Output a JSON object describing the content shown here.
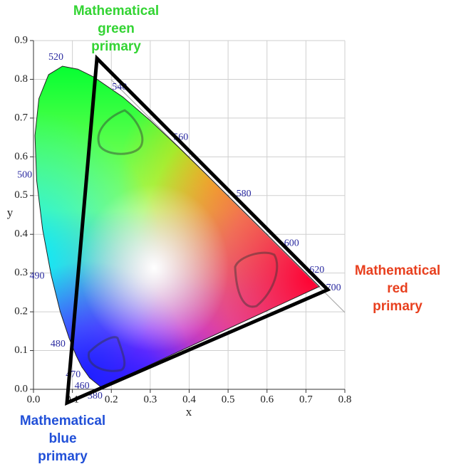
{
  "chart_data": {
    "type": "chromaticity",
    "xlabel": "x",
    "ylabel": "y",
    "xlim": [
      0,
      0.8
    ],
    "ylim": [
      0,
      0.9
    ],
    "xticks": [
      {
        "value": 0,
        "label": "0.0"
      },
      {
        "value": 0.1,
        "label": "0.1"
      },
      {
        "value": 0.2,
        "label": "0.2"
      },
      {
        "value": 0.3,
        "label": "0.3"
      },
      {
        "value": 0.4,
        "label": "0.4"
      },
      {
        "value": 0.5,
        "label": "0.5"
      },
      {
        "value": 0.6,
        "label": "0.6"
      },
      {
        "value": 0.7,
        "label": "0.7"
      },
      {
        "value": 0.8,
        "label": "0.8"
      }
    ],
    "yticks": [
      {
        "value": 0,
        "label": "0.0"
      },
      0.1,
      0.2,
      0.3,
      0.4,
      0.5,
      0.6,
      0.7,
      0.8,
      0.9
    ],
    "grid": true,
    "locus": {
      "x": [
        0.1741,
        0.144,
        0.1241,
        0.1096,
        0.0913,
        0.0687,
        0.0454,
        0.0235,
        0.0082,
        0.0039,
        0.0139,
        0.0389,
        0.0743,
        0.1142,
        0.1547,
        0.2296,
        0.3016,
        0.3731,
        0.4441,
        0.5125,
        0.5752,
        0.627,
        0.6915,
        0.7347
      ],
      "y": [
        0.005,
        0.0297,
        0.0578,
        0.0868,
        0.1327,
        0.2007,
        0.295,
        0.4127,
        0.5384,
        0.6548,
        0.7502,
        0.812,
        0.8338,
        0.8262,
        0.8059,
        0.7543,
        0.6923,
        0.6245,
        0.5547,
        0.4866,
        0.4242,
        0.3725,
        0.3083,
        0.2653
      ]
    },
    "wavelength_labels": {
      "wavelengths": [
        380,
        460,
        470,
        480,
        490,
        500,
        520,
        540,
        560,
        580,
        600,
        620,
        700
      ],
      "x": [
        0.1741,
        0.144,
        0.1241,
        0.0913,
        0.0454,
        0.0082,
        0.0743,
        0.2296,
        0.3731,
        0.5125,
        0.627,
        0.6915,
        0.7347
      ],
      "y": [
        0.005,
        0.0297,
        0.0578,
        0.1327,
        0.295,
        0.5384,
        0.8338,
        0.7543,
        0.6245,
        0.4866,
        0.3725,
        0.3083,
        0.2653
      ]
    },
    "primaries": [
      {
        "label": [
          "Mathematical",
          "green",
          "primary"
        ],
        "color": "#33d433",
        "x": 0.163,
        "y": 0.854
      },
      {
        "label": [
          "Mathematical",
          "red",
          "primary"
        ],
        "color": "#e8401f",
        "x": 0.756,
        "y": 0.257
      },
      {
        "label": [
          "Mathematical",
          "blue",
          "primary"
        ],
        "color": "#2150d8",
        "x": 0.086,
        "y": -0.035
      }
    ]
  }
}
